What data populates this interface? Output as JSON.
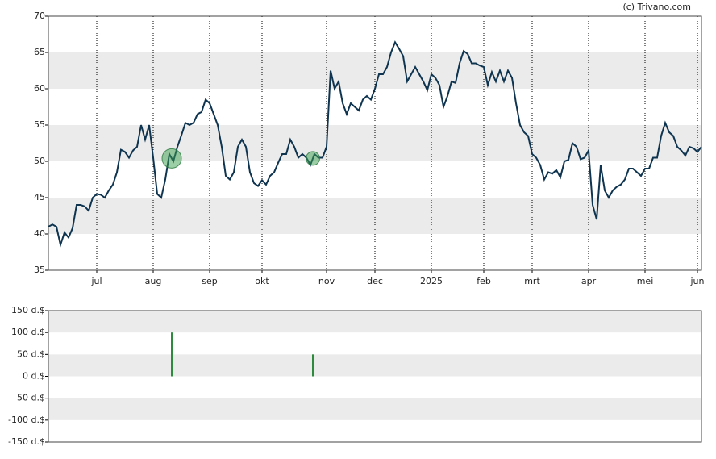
{
  "chart_data": [
    {
      "type": "line",
      "source": "(c) Trivano.com",
      "series": [
        {
          "color": "#0e3450",
          "values": [
            41,
            41.3,
            41,
            38.5,
            40.2,
            39.5,
            40.8,
            44,
            44,
            43.8,
            43.2,
            45,
            45.5,
            45.4,
            45,
            46,
            46.8,
            48.5,
            51.6,
            51.3,
            50.5,
            51.5,
            52,
            55,
            53,
            55,
            50.5,
            45.5,
            45,
            47.5,
            51,
            50,
            52,
            53.6,
            55.3,
            55,
            55.3,
            56.5,
            56.8,
            58.5,
            58,
            56.5,
            55,
            52,
            48,
            47.5,
            48.5,
            52,
            53,
            52,
            48.5,
            47,
            46.6,
            47.4,
            46.8,
            48,
            48.5,
            49.8,
            51,
            51,
            53,
            52,
            50.5,
            51,
            50.5,
            49.5,
            51,
            50.5,
            50.5,
            52,
            62.5,
            60,
            61,
            58,
            56.5,
            58,
            57.5,
            57,
            58.5,
            59,
            58.5,
            60,
            62,
            62,
            63,
            65,
            66.4,
            65.5,
            64.5,
            61,
            62,
            63,
            62,
            61,
            59.8,
            62,
            61.5,
            60.5,
            57.5,
            59,
            61,
            60.8,
            63.5,
            65.2,
            64.8,
            63.5,
            63.5,
            63.2,
            63,
            60.5,
            62.3,
            61,
            62.5,
            61,
            62.5,
            61.5,
            58,
            55,
            54,
            53.5,
            51,
            50.5,
            49.5,
            47.5,
            48.5,
            48.3,
            48.8,
            47.8,
            50,
            50.2,
            52.5,
            52,
            50.3,
            50.5,
            51.5,
            44,
            42,
            49.5,
            46,
            45,
            46,
            46.5,
            46.8,
            47.5,
            49,
            49,
            48.5,
            48,
            49,
            49,
            50.5,
            50.5,
            53.5,
            55.3,
            54,
            53.5,
            52,
            51.5,
            50.8,
            52,
            51.8,
            51.3,
            52
          ]
        }
      ],
      "xlim": [
        0,
        162
      ],
      "xticks": [
        {
          "value": 12,
          "label": "jul"
        },
        {
          "value": 26,
          "label": "aug"
        },
        {
          "value": 40,
          "label": "sep"
        },
        {
          "value": 53,
          "label": "okt"
        },
        {
          "value": 69,
          "label": "nov"
        },
        {
          "value": 81,
          "label": "dec"
        },
        {
          "value": 95,
          "label": "2025"
        },
        {
          "value": 108,
          "label": "feb"
        },
        {
          "value": 120,
          "label": "mrt"
        },
        {
          "value": 134,
          "label": "apr"
        },
        {
          "value": 148,
          "label": "mei"
        },
        {
          "value": 161,
          "label": "jun"
        }
      ],
      "ylim": [
        35,
        70
      ],
      "yticks": [
        35,
        40,
        45,
        50,
        55,
        60,
        65,
        70
      ],
      "grid": "bands"
    },
    {
      "type": "bar",
      "color": "#2e8b3e",
      "x": [
        30.6,
        65.6
      ],
      "values": [
        100,
        50
      ],
      "xlim": [
        0,
        162
      ],
      "ylim": [
        -150,
        150
      ],
      "yticks": [
        {
          "value": -150,
          "label": "-150 d.$"
        },
        {
          "value": -100,
          "label": "-100 d.$"
        },
        {
          "value": -50,
          "label": "-50 d.$"
        },
        {
          "value": 0,
          "label": "0 d.$"
        },
        {
          "value": 50,
          "label": "50 d.$"
        },
        {
          "value": 100,
          "label": "100 d.$"
        },
        {
          "value": 150,
          "label": "150 d.$"
        }
      ],
      "grid": "bands"
    }
  ]
}
